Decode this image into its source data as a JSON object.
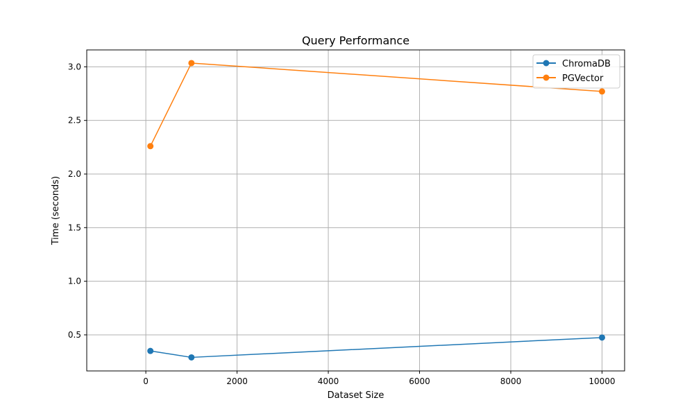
{
  "chart_data": {
    "type": "line",
    "title": "Query Performance",
    "xlabel": "Dataset Size",
    "ylabel": "Time (seconds)",
    "xlim": [
      -1295,
      10495
    ],
    "ylim": [
      0.1635,
      3.1575
    ],
    "xticks": [
      0,
      2000,
      4000,
      6000,
      8000,
      10000
    ],
    "xtick_labels": [
      "0",
      "2000",
      "4000",
      "6000",
      "8000",
      "10000"
    ],
    "yticks": [
      0.5,
      1.0,
      1.5,
      2.0,
      2.5,
      3.0
    ],
    "ytick_labels": [
      "0.5",
      "1.0",
      "1.5",
      "2.0",
      "2.5",
      "3.0"
    ],
    "grid": true,
    "legend_position": "top-right",
    "series": [
      {
        "name": "ChromaDB",
        "color": "#1f77b4",
        "marker": "circle",
        "x": [
          100,
          1000,
          10000
        ],
        "y": [
          0.35,
          0.29,
          0.475
        ]
      },
      {
        "name": "PGVector",
        "color": "#ff7f0e",
        "marker": "circle",
        "x": [
          100,
          1000,
          10000
        ],
        "y": [
          2.26,
          3.035,
          2.77
        ]
      }
    ]
  }
}
